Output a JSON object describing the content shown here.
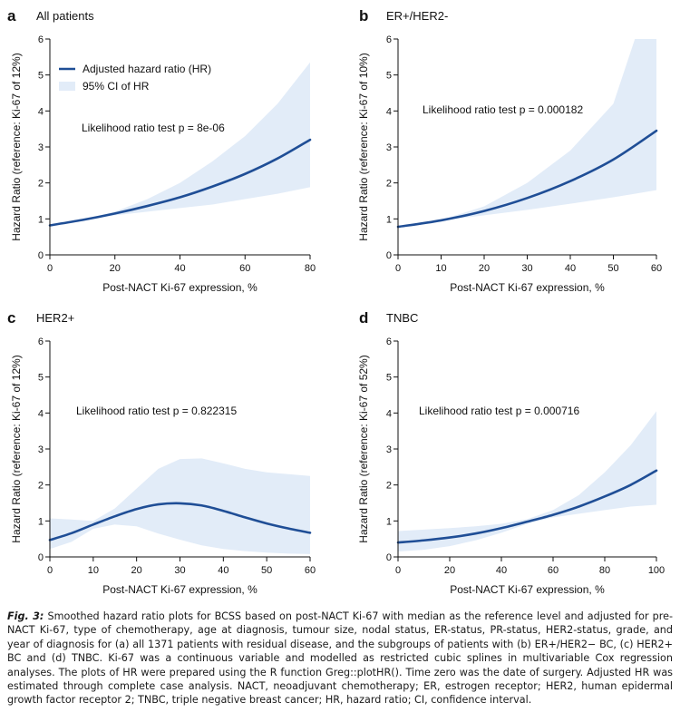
{
  "chart_data": [
    {
      "type": "line",
      "panel": "a",
      "title": "All patients",
      "xlabel": "Post-NACT Ki-67 expression, %",
      "ylabel": "Hazard Ratio (reference: Ki-67 of 12%)",
      "xlim": [
        0,
        80
      ],
      "ylim": [
        0,
        6
      ],
      "xticks": [
        0,
        20,
        40,
        60,
        80
      ],
      "yticks": [
        0,
        1,
        2,
        3,
        4,
        5,
        6
      ],
      "annotation": "Likelihood ratio test p = 8e-06",
      "legend": {
        "position": "top-left",
        "line_label": "Adjusted hazard ratio (HR)",
        "band_label": "95% CI of HR"
      },
      "series": [
        {
          "name": "Adjusted hazard ratio (HR)",
          "x": [
            0,
            10,
            20,
            30,
            40,
            50,
            60,
            70,
            80
          ],
          "values": [
            0.82,
            0.97,
            1.15,
            1.36,
            1.6,
            1.9,
            2.25,
            2.68,
            3.2
          ]
        },
        {
          "name": "95% CI of HR",
          "x": [
            0,
            10,
            20,
            30,
            40,
            50,
            60,
            70,
            80
          ],
          "lower": [
            0.8,
            0.96,
            1.1,
            1.2,
            1.3,
            1.4,
            1.55,
            1.7,
            1.88
          ],
          "upper": [
            0.84,
            0.98,
            1.2,
            1.55,
            2.0,
            2.6,
            3.3,
            4.2,
            5.35
          ]
        }
      ]
    },
    {
      "type": "line",
      "panel": "b",
      "title": "ER+/HER2-",
      "xlabel": "Post-NACT Ki-67 expression, %",
      "ylabel": "Hazard Ratio (reference: Ki-67 of 10%)",
      "xlim": [
        0,
        60
      ],
      "ylim": [
        0,
        6
      ],
      "xticks": [
        0,
        10,
        20,
        30,
        40,
        50,
        60
      ],
      "yticks": [
        0,
        1,
        2,
        3,
        4,
        5,
        6
      ],
      "annotation": "Likelihood ratio test p = 0.000182",
      "series": [
        {
          "name": "Adjusted hazard ratio (HR)",
          "x": [
            0,
            10,
            20,
            30,
            40,
            50,
            60
          ],
          "values": [
            0.78,
            0.96,
            1.22,
            1.58,
            2.05,
            2.65,
            3.45
          ]
        },
        {
          "name": "95% CI of HR",
          "x": [
            0,
            10,
            20,
            30,
            40,
            50,
            55,
            60
          ],
          "lower": [
            0.76,
            0.95,
            1.1,
            1.25,
            1.42,
            1.6,
            1.7,
            1.8
          ],
          "upper": [
            0.8,
            0.97,
            1.35,
            2.0,
            2.9,
            4.2,
            6.0,
            6.0
          ]
        }
      ]
    },
    {
      "type": "line",
      "panel": "c",
      "title": "HER2+",
      "xlabel": "Post-NACT Ki-67 expression, %",
      "ylabel": "Hazard Ratio (reference: Ki-67 of 12%)",
      "xlim": [
        0,
        60
      ],
      "ylim": [
        0,
        6
      ],
      "xticks": [
        0,
        10,
        20,
        30,
        40,
        50,
        60
      ],
      "yticks": [
        0,
        1,
        2,
        3,
        4,
        5,
        6
      ],
      "annotation": "Likelihood ratio test p = 0.822315",
      "series": [
        {
          "name": "Adjusted hazard ratio (HR)",
          "x": [
            0,
            5,
            10,
            15,
            20,
            25,
            30,
            35,
            40,
            45,
            50,
            55,
            60
          ],
          "values": [
            0.47,
            0.66,
            0.9,
            1.13,
            1.33,
            1.46,
            1.49,
            1.43,
            1.28,
            1.1,
            0.93,
            0.79,
            0.67
          ]
        },
        {
          "name": "95% CI of HR",
          "x": [
            0,
            5,
            10,
            15,
            20,
            25,
            30,
            35,
            40,
            45,
            50,
            55,
            60
          ],
          "lower": [
            0.22,
            0.42,
            0.78,
            0.9,
            0.85,
            0.65,
            0.48,
            0.32,
            0.22,
            0.16,
            0.12,
            0.09,
            0.08
          ],
          "upper": [
            1.07,
            1.04,
            1.0,
            1.35,
            1.9,
            2.45,
            2.72,
            2.74,
            2.6,
            2.45,
            2.35,
            2.3,
            2.25
          ]
        }
      ]
    },
    {
      "type": "line",
      "panel": "d",
      "title": "TNBC",
      "xlabel": "Post-NACT Ki-67 expression, %",
      "ylabel": "Hazard Ratio (reference: Ki-67 of 52%)",
      "xlim": [
        0,
        100
      ],
      "ylim": [
        0,
        6
      ],
      "xticks": [
        0,
        20,
        40,
        60,
        80,
        100
      ],
      "yticks": [
        0,
        1,
        2,
        3,
        4,
        5,
        6
      ],
      "annotation": "Likelihood ratio test p = 0.000716",
      "series": [
        {
          "name": "Adjusted hazard ratio (HR)",
          "x": [
            0,
            10,
            20,
            30,
            40,
            50,
            60,
            70,
            80,
            90,
            100
          ],
          "values": [
            0.4,
            0.46,
            0.54,
            0.65,
            0.8,
            0.98,
            1.17,
            1.4,
            1.68,
            2.0,
            2.4
          ]
        },
        {
          "name": "95% CI of HR",
          "x": [
            0,
            10,
            20,
            30,
            40,
            50,
            60,
            70,
            80,
            90,
            100
          ],
          "lower": [
            0.15,
            0.2,
            0.3,
            0.46,
            0.67,
            0.92,
            1.1,
            1.2,
            1.3,
            1.4,
            1.45
          ],
          "upper": [
            0.72,
            0.76,
            0.8,
            0.85,
            0.92,
            1.05,
            1.3,
            1.72,
            2.35,
            3.1,
            4.05
          ]
        }
      ]
    }
  ],
  "caption": {
    "label": "Fig. 3:",
    "text": "Smoothed hazard ratio plots for BCSS based on post-NACT Ki-67 with median as the reference level and adjusted for pre-NACT Ki-67, type of chemotherapy, age at diagnosis, tumour size, nodal status, ER-status, PR-status, HER2-status, grade, and year of diagnosis for (a) all 1371 patients with residual disease, and the subgroups of patients with (b) ER+/HER2− BC, (c) HER2+ BC and (d) TNBC. Ki-67 was a continuous variable and modelled as restricted cubic splines in multivariable Cox regression analyses. The plots of HR were prepared using the R function Greg::plotHR(). Time zero was the date of surgery. Adjusted HR was estimated through complete case analysis. NACT, neoadjuvant chemotherapy; ER, estrogen receptor; HER2, human epidermal growth factor receptor 2; TNBC, triple negative breast cancer; HR, hazard ratio; CI, confidence interval."
  },
  "colors": {
    "line": "#1f4e96",
    "band": "#e2ecf8",
    "axis": "#111111"
  }
}
